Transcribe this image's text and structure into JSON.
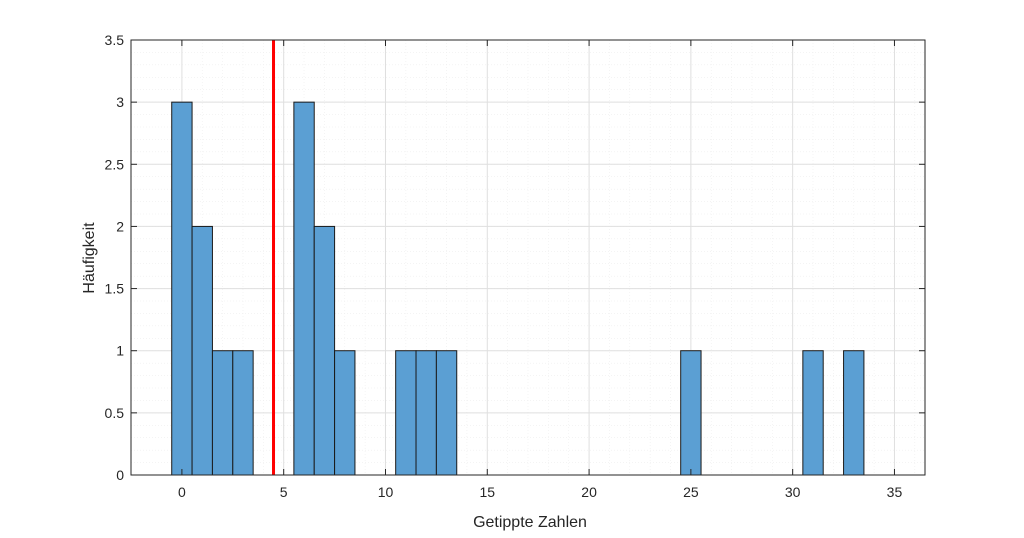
{
  "chart_data": {
    "type": "bar",
    "xlabel": "Getippte Zahlen",
    "ylabel": "Häufigkeit",
    "xlim": [
      -2.5,
      36.5
    ],
    "ylim": [
      0,
      3.5
    ],
    "bin_width": 1,
    "bins": [
      {
        "x": 0,
        "value": 3
      },
      {
        "x": 1,
        "value": 2
      },
      {
        "x": 2,
        "value": 1
      },
      {
        "x": 3,
        "value": 1
      },
      {
        "x": 6,
        "value": 3
      },
      {
        "x": 7,
        "value": 2
      },
      {
        "x": 8,
        "value": 1
      },
      {
        "x": 11,
        "value": 1
      },
      {
        "x": 12,
        "value": 1
      },
      {
        "x": 13,
        "value": 1
      },
      {
        "x": 25,
        "value": 1
      },
      {
        "x": 31,
        "value": 1
      },
      {
        "x": 33,
        "value": 1
      }
    ],
    "reference_line": {
      "x": 4.5,
      "color": "#ff0000"
    },
    "x_ticks": [
      {
        "value": 0,
        "label": "0"
      },
      {
        "value": 5,
        "label": "5"
      },
      {
        "value": 10,
        "label": "10"
      },
      {
        "value": 15,
        "label": "15"
      },
      {
        "value": 20,
        "label": "20"
      },
      {
        "value": 25,
        "label": "25"
      },
      {
        "value": 30,
        "label": "30"
      },
      {
        "value": 35,
        "label": "35"
      }
    ],
    "y_ticks": [
      {
        "value": 0,
        "label": "0"
      },
      {
        "value": 0.5,
        "label": "0.5"
      },
      {
        "value": 1,
        "label": "1"
      },
      {
        "value": 1.5,
        "label": "1.5"
      },
      {
        "value": 2,
        "label": "2"
      },
      {
        "value": 2.5,
        "label": "2.5"
      },
      {
        "value": 3,
        "label": "3"
      },
      {
        "value": 3.5,
        "label": "3.5"
      }
    ],
    "grid": true,
    "minor_grid": true,
    "colors": {
      "bar_fill": "#5b9fd3",
      "bar_edge": "#1a1a1a",
      "grid_major": "#dfdfdf",
      "grid_minor": "#eeeeee",
      "axis": "#262626"
    }
  }
}
